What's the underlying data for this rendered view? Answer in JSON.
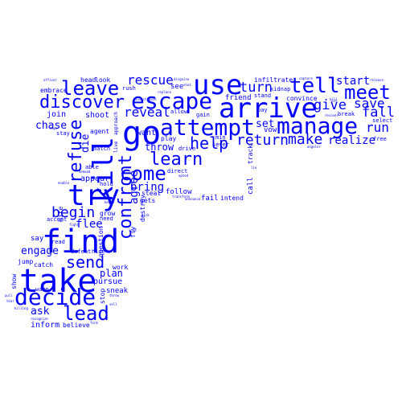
{
  "colors": {
    "text": "#0000ff",
    "background": "#ffffff"
  },
  "words": [
    {
      "text": "find"
    },
    {
      "text": "take"
    },
    {
      "text": "go"
    },
    {
      "text": "try"
    },
    {
      "text": "use"
    },
    {
      "text": "arrive"
    },
    {
      "text": "kill"
    },
    {
      "text": "escape"
    },
    {
      "text": "attempt"
    },
    {
      "text": "manage"
    },
    {
      "text": "decide"
    },
    {
      "text": "discover"
    },
    {
      "text": "tell"
    },
    {
      "text": "leave"
    },
    {
      "text": "meet"
    },
    {
      "text": "lead"
    },
    {
      "text": "come"
    },
    {
      "text": "refuse"
    },
    {
      "text": "confront"
    },
    {
      "text": "learn"
    },
    {
      "text": "send"
    },
    {
      "text": "help"
    },
    {
      "text": "begin"
    },
    {
      "text": "return"
    },
    {
      "text": "make"
    },
    {
      "text": "give"
    },
    {
      "text": "save"
    },
    {
      "text": "fall"
    },
    {
      "text": "turn"
    },
    {
      "text": "rescue"
    },
    {
      "text": "reveal"
    },
    {
      "text": "run"
    },
    {
      "text": "realize"
    },
    {
      "text": "start"
    },
    {
      "text": "agree"
    },
    {
      "text": "engage"
    },
    {
      "text": "flee"
    },
    {
      "text": "bring"
    },
    {
      "text": "chase"
    },
    {
      "text": "throw"
    },
    {
      "text": "set"
    },
    {
      "text": "ask"
    },
    {
      "text": "die"
    },
    {
      "text": "plan"
    },
    {
      "text": "appear"
    },
    {
      "text": "shoot"
    },
    {
      "text": "join"
    },
    {
      "text": "want"
    },
    {
      "text": "pursue"
    },
    {
      "text": "look"
    },
    {
      "text": "head"
    },
    {
      "text": "embrace"
    },
    {
      "text": "inform"
    },
    {
      "text": "believe"
    },
    {
      "text": "sneak"
    },
    {
      "text": "say"
    },
    {
      "text": "jump"
    },
    {
      "text": "catch"
    },
    {
      "text": "defeat"
    },
    {
      "text": "hide"
    },
    {
      "text": "work"
    },
    {
      "text": "question"
    },
    {
      "text": "stop"
    },
    {
      "text": "show"
    },
    {
      "text": "warn"
    },
    {
      "text": "see"
    },
    {
      "text": "allow"
    },
    {
      "text": "gain"
    },
    {
      "text": "friend"
    },
    {
      "text": "vow"
    },
    {
      "text": "pay"
    },
    {
      "text": "convince"
    },
    {
      "text": "break"
    },
    {
      "text": "infiltrate"
    },
    {
      "text": "kidnap"
    },
    {
      "text": "stand"
    },
    {
      "text": "free"
    },
    {
      "text": "select"
    },
    {
      "text": "follow"
    },
    {
      "text": "fail"
    },
    {
      "text": "intend"
    },
    {
      "text": "call"
    },
    {
      "text": "track"
    },
    {
      "text": "steal"
    },
    {
      "text": "direct"
    },
    {
      "text": "gets"
    },
    {
      "text": "fly"
    },
    {
      "text": "destroy"
    },
    {
      "text": "grow"
    },
    {
      "text": "hold"
    },
    {
      "text": "able"
    },
    {
      "text": "need"
    },
    {
      "text": "hire"
    },
    {
      "text": "accept"
    },
    {
      "text": "read"
    },
    {
      "text": "match"
    },
    {
      "text": "agent"
    },
    {
      "text": "play"
    },
    {
      "text": "drive"
    },
    {
      "text": "sever"
    },
    {
      "text": "min"
    },
    {
      "text": "rush"
    },
    {
      "text": "stay"
    },
    {
      "text": "approach"
    },
    {
      "text": "live"
    },
    {
      "text": "officer"
    },
    {
      "text": "disguise"
    },
    {
      "text": "replace"
    },
    {
      "text": "capture"
    },
    {
      "text": "release"
    },
    {
      "text": "investigate"
    },
    {
      "text": "demand"
    },
    {
      "text": "enable"
    },
    {
      "text": "transform"
    },
    {
      "text": "announce"
    },
    {
      "text": "opted"
    },
    {
      "text": "angelor"
    },
    {
      "text": "recover"
    },
    {
      "text": "kill"
    },
    {
      "text": "hope"
    },
    {
      "text": "pull"
    },
    {
      "text": "tear"
    },
    {
      "text": "killing"
    },
    {
      "text": "recognize"
    },
    {
      "text": "throw"
    },
    {
      "text": "sell"
    },
    {
      "text": "lie"
    },
    {
      "text": "sit"
    },
    {
      "text": "look"
    },
    {
      "text": "fight"
    },
    {
      "text": "pick"
    },
    {
      "text": "begin"
    },
    {
      "text": "form"
    },
    {
      "text": "shut"
    }
  ]
}
